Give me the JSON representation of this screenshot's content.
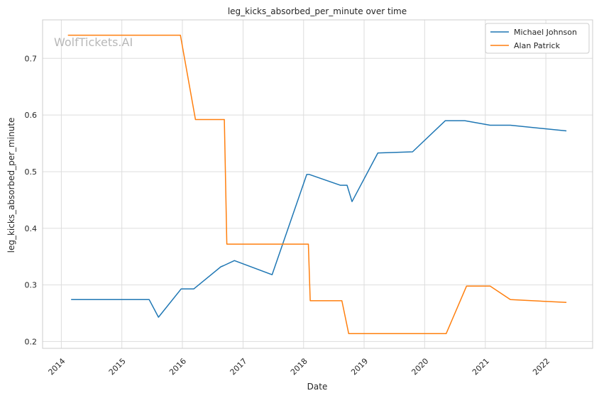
{
  "chart_data": {
    "type": "line",
    "title": "leg_kicks_absorbed_per_minute over time",
    "xlabel": "Date",
    "ylabel": "leg_kicks_absorbed_per_minute",
    "watermark": "WolfTickets.AI",
    "x_axis_kind": "date",
    "xlim": [
      "2013-09-10",
      "2022-10-10"
    ],
    "ylim": [
      0.188,
      0.768
    ],
    "x_ticks": [
      "2014",
      "2015",
      "2016",
      "2017",
      "2018",
      "2019",
      "2020",
      "2021",
      "2022"
    ],
    "y_ticks": [
      "0.2",
      "0.3",
      "0.4",
      "0.5",
      "0.6",
      "0.7"
    ],
    "grid": true,
    "legend_position": "top-right",
    "series": [
      {
        "name": "Michael Johnson",
        "color": "#1f77b4",
        "points": [
          [
            "2014-03-01",
            0.274
          ],
          [
            "2015-06-15",
            0.274
          ],
          [
            "2015-08-10",
            0.243
          ],
          [
            "2015-12-25",
            0.293
          ],
          [
            "2016-03-10",
            0.293
          ],
          [
            "2016-08-20",
            0.332
          ],
          [
            "2016-09-05",
            0.334
          ],
          [
            "2016-11-10",
            0.343
          ],
          [
            "2017-06-25",
            0.318
          ],
          [
            "2018-01-20",
            0.495
          ],
          [
            "2018-02-05",
            0.495
          ],
          [
            "2018-08-10",
            0.476
          ],
          [
            "2018-09-20",
            0.476
          ],
          [
            "2018-10-20",
            0.447
          ],
          [
            "2019-03-25",
            0.533
          ],
          [
            "2019-10-20",
            0.535
          ],
          [
            "2020-05-05",
            0.59
          ],
          [
            "2020-08-30",
            0.59
          ],
          [
            "2021-01-30",
            0.582
          ],
          [
            "2021-06-01",
            0.582
          ],
          [
            "2022-05-05",
            0.572
          ]
        ]
      },
      {
        "name": "Alan Patrick",
        "color": "#ff7f0e",
        "points": [
          [
            "2014-02-10",
            0.741
          ],
          [
            "2015-12-20",
            0.741
          ],
          [
            "2016-03-20",
            0.592
          ],
          [
            "2016-09-10",
            0.592
          ],
          [
            "2016-09-25",
            0.372
          ],
          [
            "2018-01-30",
            0.372
          ],
          [
            "2018-02-10",
            0.272
          ],
          [
            "2018-08-20",
            0.272
          ],
          [
            "2018-09-30",
            0.214
          ],
          [
            "2020-05-10",
            0.214
          ],
          [
            "2020-09-10",
            0.298
          ],
          [
            "2021-01-30",
            0.298
          ],
          [
            "2021-06-01",
            0.274
          ],
          [
            "2022-05-05",
            0.269
          ]
        ]
      }
    ]
  }
}
